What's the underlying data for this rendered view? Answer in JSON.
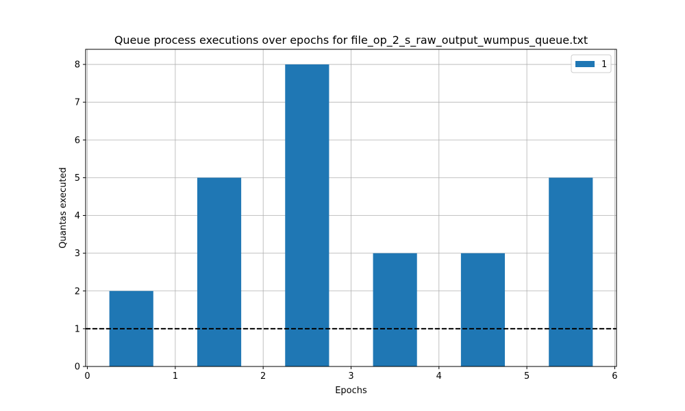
{
  "chart_data": {
    "type": "bar",
    "title": "Queue process executions over epochs for file_op_2_s_raw_output_wumpus_queue.txt",
    "xlabel": "Epochs",
    "ylabel": "Quantas executed",
    "xlim": [
      -0.02,
      6.02
    ],
    "ylim": [
      0,
      8.4
    ],
    "xticks": [
      0,
      1,
      2,
      3,
      4,
      5,
      6
    ],
    "yticks": [
      0,
      1,
      2,
      3,
      4,
      5,
      6,
      7,
      8
    ],
    "x": [
      0.5,
      1.5,
      2.5,
      3.5,
      4.5,
      5.5
    ],
    "bar_width": 0.5,
    "series": [
      {
        "name": "1",
        "color": "#1f77b4",
        "values": [
          2,
          5,
          8,
          3,
          3,
          5
        ]
      }
    ],
    "reference_line": {
      "y": 1,
      "color": "#000000",
      "style": "dashed"
    },
    "grid": true,
    "legend_position": "top-right"
  }
}
